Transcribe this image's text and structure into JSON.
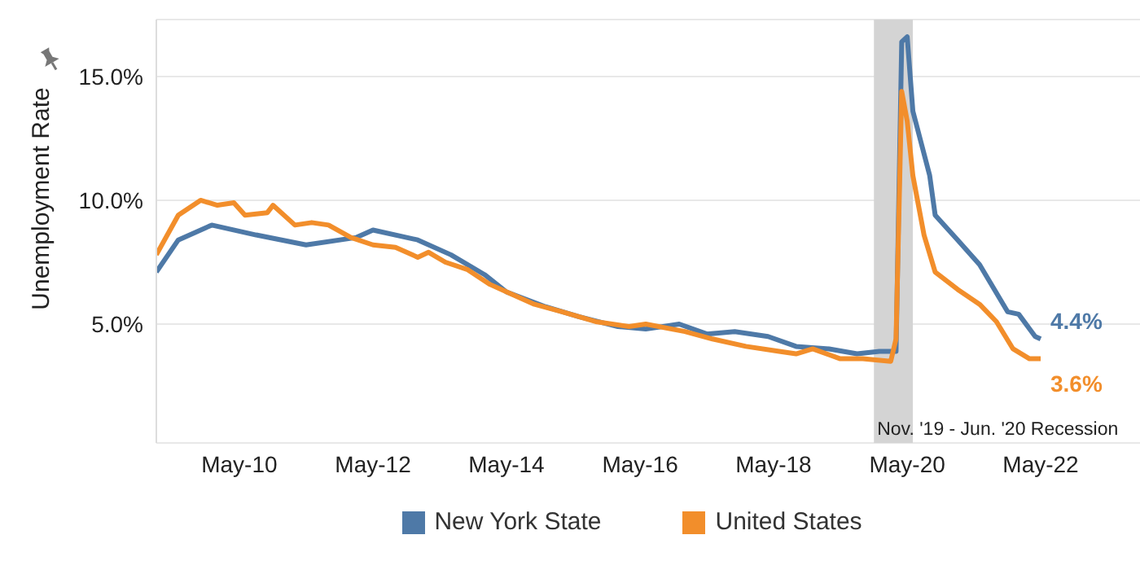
{
  "chart_data": {
    "type": "line",
    "ylabel": "Unemployment Rate",
    "xlim": [
      "2009-02",
      "2023-12"
    ],
    "ylim": [
      0.2,
      17.3
    ],
    "yticks": [
      {
        "value": 5,
        "label": "5.0%"
      },
      {
        "value": 10,
        "label": "10.0%"
      },
      {
        "value": 15,
        "label": "15.0%"
      }
    ],
    "xticks": [
      {
        "value": "2010-05",
        "label": "May-10"
      },
      {
        "value": "2012-05",
        "label": "May-12"
      },
      {
        "value": "2014-05",
        "label": "May-14"
      },
      {
        "value": "2016-05",
        "label": "May-16"
      },
      {
        "value": "2018-05",
        "label": "May-18"
      },
      {
        "value": "2020-05",
        "label": "May-20"
      },
      {
        "value": "2022-05",
        "label": "May-22"
      }
    ],
    "grid": "y",
    "legend": "bottom",
    "marker": "none",
    "line_style": "solid",
    "bands": [
      {
        "axis": "x",
        "from": "2019-11",
        "to": "2020-06",
        "label": "Nov. '19 - Jun. '20 Recession",
        "color": "#d4d4d4"
      }
    ],
    "series": [
      {
        "name": "New York State",
        "color": "#4e79a7",
        "x": [
          "2009-02",
          "2009-06",
          "2009-12",
          "2010-08",
          "2011-05",
          "2012-02",
          "2012-05",
          "2013-01",
          "2013-07",
          "2014-01",
          "2014-05",
          "2014-12",
          "2015-06",
          "2016-01",
          "2016-06",
          "2016-12",
          "2017-05",
          "2017-10",
          "2018-04",
          "2018-09",
          "2019-03",
          "2019-08",
          "2019-12",
          "2020-03",
          "2020-04",
          "2020-05",
          "2020-06",
          "2020-09",
          "2020-10",
          "2021-02",
          "2021-06",
          "2021-11",
          "2022-01",
          "2022-04",
          "2022-05"
        ],
        "values": [
          7.1,
          8.4,
          9.0,
          8.6,
          8.2,
          8.5,
          8.8,
          8.4,
          7.8,
          7.0,
          6.3,
          5.7,
          5.3,
          4.9,
          4.8,
          5.0,
          4.6,
          4.7,
          4.5,
          4.1,
          4.0,
          3.8,
          3.9,
          3.9,
          16.4,
          16.6,
          13.6,
          11.0,
          9.4,
          8.4,
          7.4,
          5.5,
          5.4,
          4.5,
          4.4
        ],
        "value_labels": [
          null,
          null,
          null,
          null,
          null,
          null,
          null,
          null,
          null,
          null,
          null,
          null,
          null,
          null,
          null,
          null,
          null,
          null,
          null,
          null,
          null,
          null,
          null,
          null,
          null,
          null,
          null,
          null,
          null,
          null,
          null,
          null,
          null,
          null,
          "4.4%"
        ]
      },
      {
        "name": "United States",
        "color": "#f28e2b",
        "x": [
          "2009-02",
          "2009-06",
          "2009-10",
          "2010-01",
          "2010-04",
          "2010-06",
          "2010-10",
          "2010-11",
          "2011-03",
          "2011-06",
          "2011-09",
          "2012-01",
          "2012-05",
          "2012-09",
          "2013-01",
          "2013-03",
          "2013-06",
          "2013-10",
          "2014-02",
          "2014-06",
          "2014-10",
          "2015-03",
          "2015-09",
          "2016-03",
          "2016-06",
          "2017-01",
          "2017-06",
          "2017-12",
          "2018-06",
          "2018-09",
          "2018-12",
          "2019-05",
          "2019-09",
          "2020-02",
          "2020-03",
          "2020-04",
          "2020-05",
          "2020-06",
          "2020-08",
          "2020-10",
          "2021-02",
          "2021-06",
          "2021-09",
          "2021-12",
          "2022-03",
          "2022-05"
        ],
        "values": [
          7.8,
          9.4,
          10.0,
          9.8,
          9.9,
          9.4,
          9.5,
          9.8,
          9.0,
          9.1,
          9.0,
          8.5,
          8.2,
          8.1,
          7.7,
          7.9,
          7.5,
          7.2,
          6.6,
          6.2,
          5.8,
          5.5,
          5.1,
          4.9,
          5.0,
          4.7,
          4.4,
          4.1,
          3.9,
          3.8,
          4.0,
          3.6,
          3.6,
          3.5,
          4.4,
          14.4,
          13.2,
          11.0,
          8.6,
          7.1,
          6.4,
          5.8,
          5.1,
          4.0,
          3.6,
          3.6
        ],
        "value_labels": [
          null,
          null,
          null,
          null,
          null,
          null,
          null,
          null,
          null,
          null,
          null,
          null,
          null,
          null,
          null,
          null,
          null,
          null,
          null,
          null,
          null,
          null,
          null,
          null,
          null,
          null,
          null,
          null,
          null,
          null,
          null,
          null,
          null,
          null,
          null,
          null,
          null,
          null,
          null,
          null,
          null,
          null,
          null,
          null,
          null,
          "3.6%"
        ]
      }
    ]
  }
}
